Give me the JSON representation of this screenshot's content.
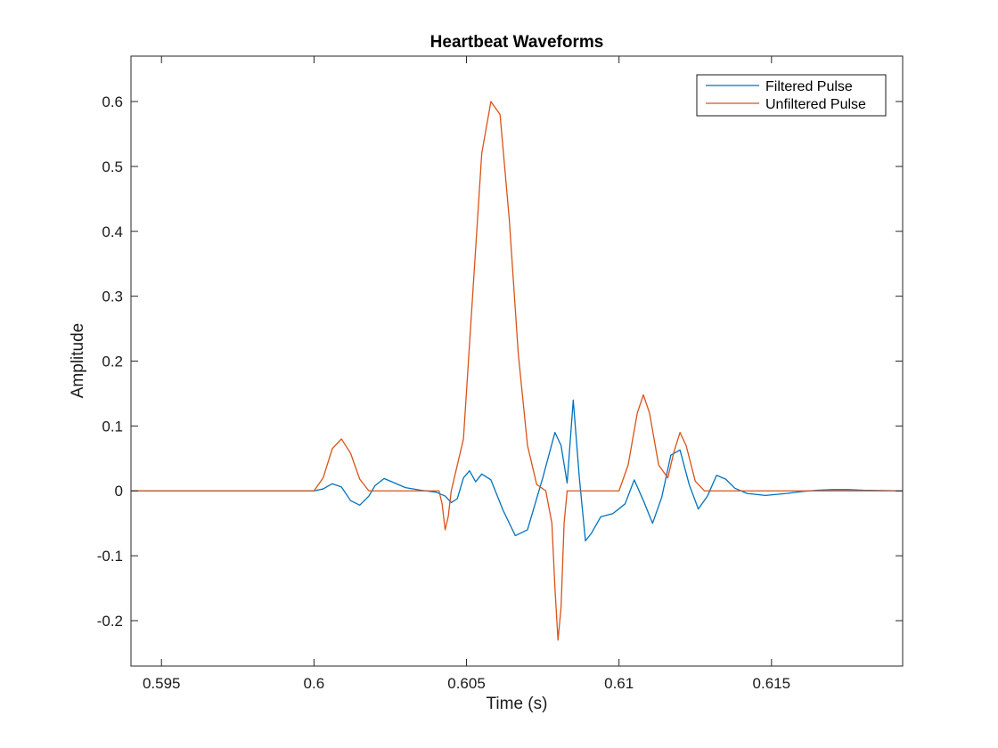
{
  "chart_data": {
    "type": "line",
    "title": "Heartbeat Waveforms",
    "xlabel": "Time (s)",
    "ylabel": "Amplitude",
    "xlim": [
      0.594,
      0.6193
    ],
    "ylim": [
      -0.27,
      0.67
    ],
    "xticks": [
      0.595,
      0.6,
      0.605,
      0.61,
      0.615
    ],
    "xtick_labels": [
      "0.595",
      "0.6",
      "0.605",
      "0.61",
      "0.615"
    ],
    "yticks": [
      -0.2,
      -0.1,
      0,
      0.1,
      0.2,
      0.3,
      0.4,
      0.5,
      0.6
    ],
    "ytick_labels": [
      "-0.2",
      "-0.1",
      "0",
      "0.1",
      "0.2",
      "0.3",
      "0.4",
      "0.5",
      "0.6"
    ],
    "grid": false,
    "legend_position": "top-right",
    "series": [
      {
        "name": "Filtered Pulse",
        "color": "#0072BD",
        "x": [
          0.594,
          0.6,
          0.6003,
          0.6006,
          0.6009,
          0.6012,
          0.6015,
          0.6018,
          0.602,
          0.6023,
          0.6026,
          0.603,
          0.6035,
          0.604,
          0.6043,
          0.6045,
          0.6047,
          0.6049,
          0.6051,
          0.6053,
          0.6055,
          0.6058,
          0.6062,
          0.6066,
          0.607,
          0.6075,
          0.6079,
          0.6081,
          0.6083,
          0.6085,
          0.6087,
          0.6089,
          0.6091,
          0.6094,
          0.6098,
          0.6102,
          0.6105,
          0.6108,
          0.6111,
          0.6114,
          0.6117,
          0.612,
          0.6123,
          0.6126,
          0.6129,
          0.6132,
          0.6135,
          0.6138,
          0.6142,
          0.6148,
          0.6155,
          0.616,
          0.6165,
          0.617,
          0.6175,
          0.618,
          0.6193
        ],
        "y": [
          0,
          0,
          0.003,
          0.011,
          0.006,
          -0.015,
          -0.022,
          -0.008,
          0.008,
          0.019,
          0.013,
          0.005,
          0.001,
          -0.002,
          -0.008,
          -0.018,
          -0.012,
          0.02,
          0.031,
          0.014,
          0.026,
          0.017,
          -0.03,
          -0.069,
          -0.06,
          0.02,
          0.09,
          0.07,
          0.012,
          0.14,
          0.02,
          -0.077,
          -0.065,
          -0.04,
          -0.035,
          -0.02,
          0.017,
          -0.015,
          -0.05,
          -0.01,
          0.055,
          0.063,
          0.01,
          -0.028,
          -0.008,
          0.024,
          0.018,
          0.004,
          -0.004,
          -0.007,
          -0.004,
          -0.001,
          0.001,
          0.002,
          0.002,
          0.001,
          0
        ]
      },
      {
        "name": "Unfiltered Pulse",
        "color": "#D95319",
        "x": [
          0.594,
          0.6,
          0.6003,
          0.6006,
          0.6009,
          0.6012,
          0.6015,
          0.6018,
          0.6041,
          0.6042,
          0.6043,
          0.6044,
          0.6045,
          0.6049,
          0.6052,
          0.6055,
          0.6058,
          0.6061,
          0.6064,
          0.6067,
          0.607,
          0.6073,
          0.6076,
          0.6078,
          0.6079,
          0.608,
          0.6081,
          0.6082,
          0.6083,
          0.61,
          0.6103,
          0.6106,
          0.6108,
          0.611,
          0.6113,
          0.6116,
          0.6118,
          0.612,
          0.6122,
          0.6125,
          0.6128,
          0.6193
        ],
        "y": [
          0,
          0,
          0.02,
          0.065,
          0.08,
          0.058,
          0.018,
          0,
          0,
          -0.02,
          -0.06,
          -0.04,
          0,
          0.08,
          0.3,
          0.52,
          0.6,
          0.58,
          0.42,
          0.21,
          0.07,
          0.01,
          0,
          -0.05,
          -0.15,
          -0.23,
          -0.18,
          -0.05,
          0,
          0,
          0.04,
          0.12,
          0.148,
          0.12,
          0.04,
          0.02,
          0.06,
          0.09,
          0.07,
          0.015,
          0,
          0
        ]
      }
    ]
  }
}
